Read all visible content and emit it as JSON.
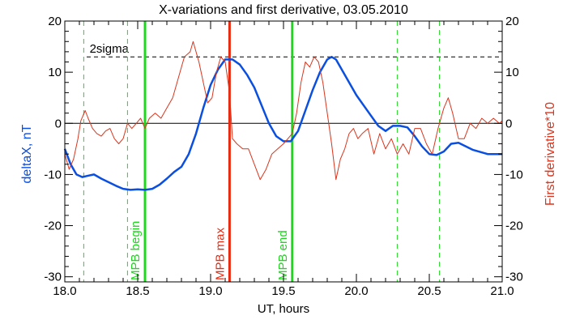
{
  "chart_data": {
    "type": "line",
    "title": "X-variations and first derivative, 03.05.2010",
    "xlabel": "UT, hours",
    "ylabel_left": "deltaX, nT",
    "ylabel_right": "First derivative*10",
    "xlim": [
      18.0,
      21.0
    ],
    "ylim": [
      -31,
      20
    ],
    "x_ticks": [
      18.0,
      18.5,
      19.0,
      19.5,
      20.0,
      20.5,
      21.0
    ],
    "x_tick_labels": [
      "18.0",
      "18.5",
      "19.0",
      "19.5",
      "20.0",
      "20.5",
      "21.0"
    ],
    "y_ticks": [
      -30,
      -20,
      -10,
      0,
      10,
      20
    ],
    "y_tick_labels": [
      "-30",
      "-20",
      "-10",
      "0",
      "10",
      "20"
    ],
    "grid": false,
    "colors": {
      "deltaX": "#0a4fe0",
      "derivative": "#d8361e",
      "mpb": "#1ed81e",
      "mpb_max": "#e82a10",
      "axes": "#000000"
    },
    "reference_lines": {
      "zero": 0,
      "two_sigma": 13,
      "two_sigma_label": "2sigma"
    },
    "vertical_markers": [
      {
        "x": 18.55,
        "label": "MPB begin",
        "color": "#1ed81e",
        "style": "solid"
      },
      {
        "x": 19.13,
        "label": "MPB max",
        "color": "#e82a10",
        "style": "solid"
      },
      {
        "x": 19.56,
        "label": "MPB end",
        "color": "#1ed81e",
        "style": "solid"
      }
    ],
    "dashed_markers": [
      18.13,
      18.43,
      20.28,
      20.57
    ],
    "series": [
      {
        "name": "deltaX, nT",
        "color": "#0a4fe0",
        "x": [
          18.0,
          18.04,
          18.08,
          18.12,
          18.15,
          18.2,
          18.25,
          18.3,
          18.35,
          18.4,
          18.45,
          18.5,
          18.55,
          18.6,
          18.65,
          18.7,
          18.75,
          18.8,
          18.85,
          18.9,
          18.95,
          19.0,
          19.05,
          19.1,
          19.15,
          19.2,
          19.25,
          19.3,
          19.35,
          19.4,
          19.45,
          19.5,
          19.55,
          19.6,
          19.65,
          19.7,
          19.75,
          19.8,
          19.83,
          19.86,
          19.9,
          19.95,
          20.0,
          20.05,
          20.1,
          20.15,
          20.2,
          20.25,
          20.3,
          20.35,
          20.4,
          20.45,
          20.5,
          20.55,
          20.6,
          20.65,
          20.7,
          20.8,
          20.9,
          21.0
        ],
        "y": [
          -5,
          -8,
          -10,
          -10.5,
          -10.3,
          -10,
          -10.8,
          -11.5,
          -12.2,
          -12.8,
          -13,
          -12.9,
          -13,
          -12.8,
          -12,
          -10.8,
          -9.5,
          -8.5,
          -6,
          -2,
          3,
          7.5,
          10.5,
          12.5,
          12.5,
          11.5,
          9.5,
          7,
          3.5,
          0,
          -2.5,
          -3.5,
          -3.5,
          -1.5,
          2.5,
          6.5,
          10,
          12.5,
          13,
          12.5,
          10.5,
          8,
          5.5,
          3.5,
          1.5,
          -0.5,
          -1.5,
          -0.5,
          -0.5,
          -0.8,
          -2.5,
          -4.5,
          -6,
          -6.2,
          -5.5,
          -4,
          -3.8,
          -5.2,
          -6,
          -6
        ]
      },
      {
        "name": "First derivative*10",
        "color": "#d8361e",
        "x": [
          18.0,
          18.03,
          18.06,
          18.09,
          18.11,
          18.14,
          18.16,
          18.19,
          18.22,
          18.25,
          18.28,
          18.31,
          18.34,
          18.37,
          18.4,
          18.43,
          18.46,
          18.49,
          18.52,
          18.55,
          18.58,
          18.62,
          18.66,
          18.7,
          18.74,
          18.78,
          18.82,
          18.86,
          18.88,
          18.92,
          18.95,
          18.98,
          19.01,
          19.04,
          19.07,
          19.1,
          19.13,
          19.15,
          19.18,
          19.22,
          19.26,
          19.3,
          19.34,
          19.38,
          19.42,
          19.46,
          19.5,
          19.53,
          19.56,
          19.59,
          19.62,
          19.65,
          19.68,
          19.71,
          19.74,
          19.77,
          19.8,
          19.83,
          19.86,
          19.89,
          19.92,
          19.95,
          19.98,
          20.01,
          20.04,
          20.08,
          20.12,
          20.16,
          20.2,
          20.24,
          20.28,
          20.32,
          20.36,
          20.4,
          20.44,
          20.48,
          20.52,
          20.56,
          20.6,
          20.63,
          20.66,
          20.7,
          20.74,
          20.78,
          20.82,
          20.86,
          20.9,
          20.94,
          20.98,
          21.0
        ],
        "y": [
          -6,
          -9,
          -7,
          -3,
          0.5,
          2.5,
          1,
          -1,
          -2,
          -2.5,
          -1.5,
          -1,
          -3,
          -4,
          -3,
          0,
          -1,
          0,
          1,
          -1,
          1,
          2,
          1,
          3,
          5,
          9,
          13,
          14,
          16,
          12,
          8,
          4,
          5,
          10,
          13,
          12,
          6,
          -3,
          -4,
          -5,
          -5,
          -8,
          -11,
          -9,
          -6,
          -5,
          -4,
          -3,
          -2,
          2,
          8,
          12,
          11,
          13,
          12,
          8,
          2,
          -4,
          -11,
          -7,
          -5,
          -2,
          -1,
          -3,
          -2,
          -1,
          -6,
          -2,
          -5,
          -3,
          -6,
          -4,
          -6,
          -1,
          -1,
          -4,
          -6,
          -1,
          3,
          5,
          2,
          -3,
          -3,
          0,
          -1,
          1,
          0,
          1,
          0,
          0.5
        ]
      }
    ]
  }
}
